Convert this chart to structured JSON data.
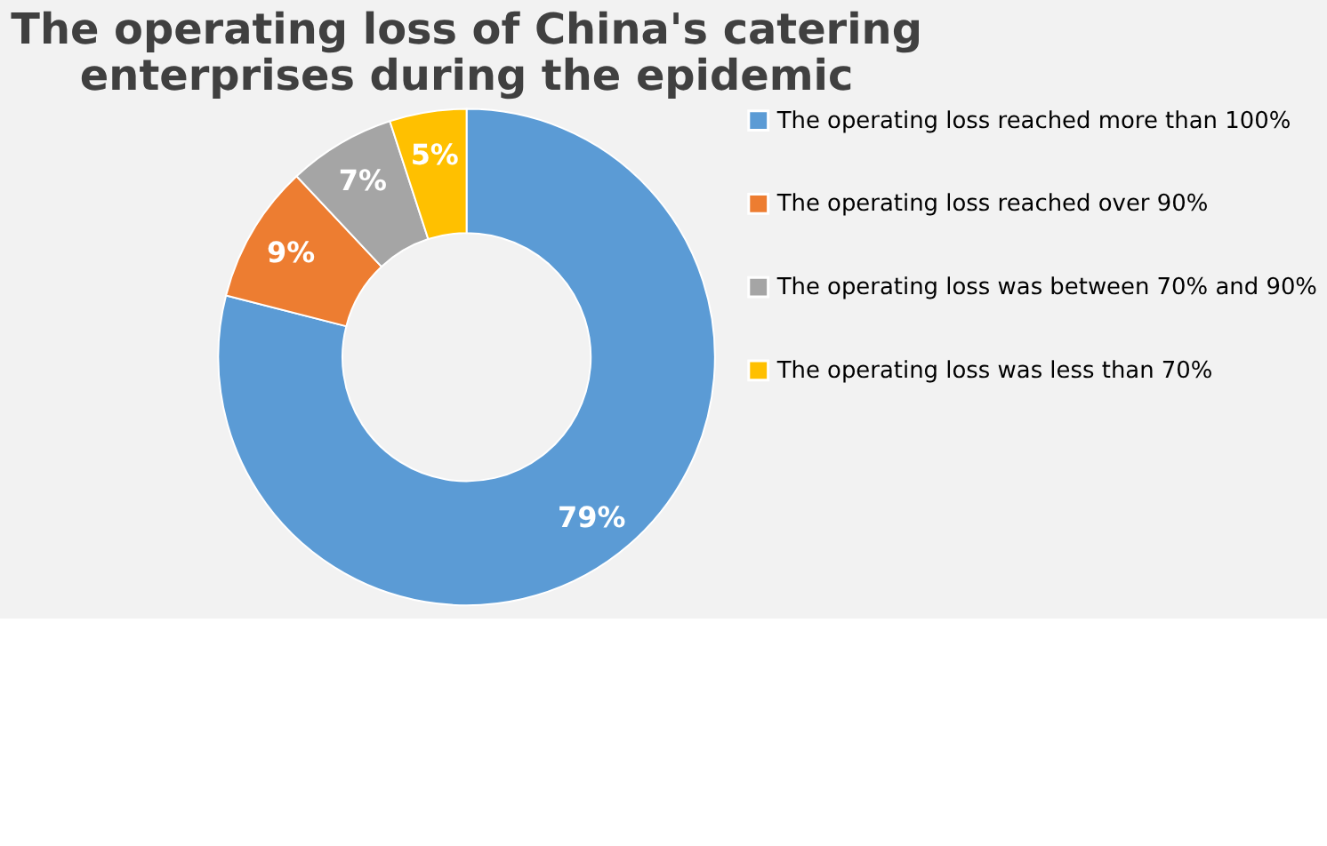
{
  "chart_data": {
    "type": "donut",
    "title": "The operating loss of China's catering enterprises during the epidemic",
    "categories": [
      "The operating loss reached more than 100%",
      "The operating loss reached over 90%",
      "The operating loss was between 70% and 90%",
      "The operating loss was less than 70%"
    ],
    "values": [
      79,
      9,
      7,
      5
    ],
    "colors": [
      "#5b9bd5",
      "#ed7d31",
      "#a5a5a5",
      "#ffc000"
    ],
    "value_labels": [
      "79%",
      "9%",
      "7%",
      "5%"
    ],
    "legend": "right"
  }
}
